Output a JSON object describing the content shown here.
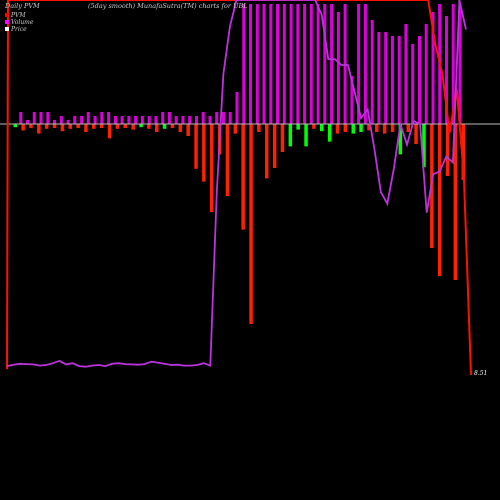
{
  "chart_data": {
    "type": "bar",
    "title": "(5day smooth) MunafaSutra(TM) charts for UBL",
    "header_left": "Daily PVM",
    "header_right": "UBL",
    "legend": [
      {
        "label": "PVM",
        "color": "#ff0000"
      },
      {
        "label": "Volume",
        "color": "#ff00ff"
      },
      {
        "label": "Price",
        "color": "#ffffff"
      }
    ],
    "colors": {
      "background": "#000000",
      "pvm_up": "#00ff00",
      "pvm_down": "#ff2200",
      "volume": "#dd00dd",
      "price_line": "#bb33dd",
      "pvm_line": "#ff1100",
      "zero_line": "#bbbbbb"
    },
    "last_price": "8.51",
    "pvm_bars": [
      {
        "v": -0.4,
        "c": "up"
      },
      {
        "v": -0.8,
        "c": "down"
      },
      {
        "v": -0.5,
        "c": "down"
      },
      {
        "v": -1.2,
        "c": "down"
      },
      {
        "v": -0.6,
        "c": "down"
      },
      {
        "v": -0.5,
        "c": "down"
      },
      {
        "v": -0.9,
        "c": "down"
      },
      {
        "v": -0.6,
        "c": "down"
      },
      {
        "v": -0.5,
        "c": "down"
      },
      {
        "v": -1.0,
        "c": "down"
      },
      {
        "v": -0.6,
        "c": "down"
      },
      {
        "v": -0.5,
        "c": "down"
      },
      {
        "v": -1.8,
        "c": "down"
      },
      {
        "v": -0.6,
        "c": "down"
      },
      {
        "v": -0.5,
        "c": "down"
      },
      {
        "v": -0.7,
        "c": "down"
      },
      {
        "v": -0.4,
        "c": "up"
      },
      {
        "v": -0.6,
        "c": "down"
      },
      {
        "v": -1.0,
        "c": "down"
      },
      {
        "v": -0.6,
        "c": "up"
      },
      {
        "v": -0.5,
        "c": "down"
      },
      {
        "v": -1.0,
        "c": "down"
      },
      {
        "v": -1.5,
        "c": "down"
      },
      {
        "v": -5.6,
        "c": "down"
      },
      {
        "v": -7.2,
        "c": "down"
      },
      {
        "v": -11.0,
        "c": "down"
      },
      {
        "v": -3.8,
        "c": "down"
      },
      {
        "v": -9.0,
        "c": "down"
      },
      {
        "v": -1.2,
        "c": "down"
      },
      {
        "v": -13.2,
        "c": "down"
      },
      {
        "v": -25.0,
        "c": "down"
      },
      {
        "v": -1.0,
        "c": "down"
      },
      {
        "v": -6.8,
        "c": "down"
      },
      {
        "v": -5.5,
        "c": "down"
      },
      {
        "v": -3.5,
        "c": "down"
      },
      {
        "v": -2.8,
        "c": "up"
      },
      {
        "v": -0.7,
        "c": "up"
      },
      {
        "v": -2.8,
        "c": "up"
      },
      {
        "v": -0.6,
        "c": "down"
      },
      {
        "v": -0.9,
        "c": "up"
      },
      {
        "v": -2.2,
        "c": "up"
      },
      {
        "v": -1.2,
        "c": "down"
      },
      {
        "v": -1.0,
        "c": "down"
      },
      {
        "v": -1.2,
        "c": "up"
      },
      {
        "v": -1.0,
        "c": "up"
      },
      {
        "v": -0.8,
        "c": "down"
      },
      {
        "v": -1.0,
        "c": "down"
      },
      {
        "v": -1.2,
        "c": "down"
      },
      {
        "v": -1.0,
        "c": "down"
      },
      {
        "v": -3.8,
        "c": "up"
      },
      {
        "v": -1.0,
        "c": "down"
      },
      {
        "v": -2.5,
        "c": "down"
      },
      {
        "v": -5.4,
        "c": "up"
      },
      {
        "v": -15.5,
        "c": "down"
      },
      {
        "v": -19.0,
        "c": "down"
      },
      {
        "v": -6.5,
        "c": "down"
      },
      {
        "v": -19.5,
        "c": "down"
      },
      {
        "v": -7.0,
        "c": "down"
      }
    ],
    "volume_bars": [
      0.0,
      0.3,
      0.1,
      0.3,
      0.3,
      0.3,
      0.1,
      0.2,
      0.1,
      0.2,
      0.2,
      0.3,
      0.2,
      0.3,
      0.3,
      0.2,
      0.2,
      0.2,
      0.2,
      0.2,
      0.2,
      0.2,
      0.3,
      0.3,
      0.2,
      0.2,
      0.2,
      0.2,
      0.3,
      0.2,
      0.3,
      0.3,
      0.3,
      0.8,
      3.0,
      3.0,
      3.0,
      3.0,
      3.0,
      3.0,
      3.0,
      3.0,
      3.0,
      3.0,
      3.0,
      3.0,
      3.0,
      3.0,
      2.8,
      3.0,
      1.2,
      3.0,
      3.0,
      2.6,
      2.3,
      2.3,
      2.2,
      2.2,
      2.5,
      2.0,
      2.2,
      2.5,
      2.8,
      3.0,
      2.7,
      3.0,
      3.0
    ],
    "price_line": [
      11.1,
      11.15,
      11.18,
      11.17,
      11.16,
      11.12,
      11.14,
      11.2,
      11.28,
      11.16,
      11.2,
      11.1,
      11.08,
      11.12,
      11.14,
      11.1,
      11.18,
      11.2,
      11.17,
      11.16,
      11.15,
      11.17,
      11.25,
      11.22,
      11.18,
      11.14,
      11.15,
      11.12,
      11.12,
      11.14,
      11.2,
      11.12,
      17.0,
      21.0,
      22.6,
      23.5,
      23.5,
      23.5,
      23.5,
      23.5,
      23.5,
      23.5,
      23.5,
      23.5,
      23.5,
      23.5,
      23.5,
      23.5,
      23.0,
      21.5,
      21.5,
      21.3,
      21.3,
      20.4,
      19.5,
      19.8,
      18.5,
      17.0,
      16.6,
      17.8,
      19.3,
      18.6,
      19.4,
      19.3,
      16.3,
      17.6,
      17.7,
      18.2,
      18.0,
      23.5,
      22.5
    ],
    "pvm_line": [
      11.0,
      23.5,
      23.5,
      23.5,
      23.5,
      23.5,
      23.5,
      23.5,
      23.5,
      23.5,
      23.5,
      23.5,
      23.5,
      23.5,
      23.5,
      23.5,
      23.5,
      23.5,
      23.5,
      23.5,
      23.5,
      23.5,
      23.5,
      23.5,
      23.5,
      23.5,
      23.5,
      23.5,
      23.5,
      23.5,
      23.5,
      23.5,
      23.5,
      23.5,
      23.5,
      23.5,
      23.5,
      23.5,
      23.5,
      23.5,
      23.5,
      23.5,
      23.5,
      23.5,
      23.5,
      23.5,
      23.5,
      23.5,
      23.5,
      23.5,
      23.5,
      23.5,
      23.5,
      23.5,
      23.5,
      23.5,
      23.5,
      23.5,
      23.5,
      23.5,
      22.0,
      21.0,
      19.0,
      20.5,
      17.5,
      10.8
    ]
  }
}
